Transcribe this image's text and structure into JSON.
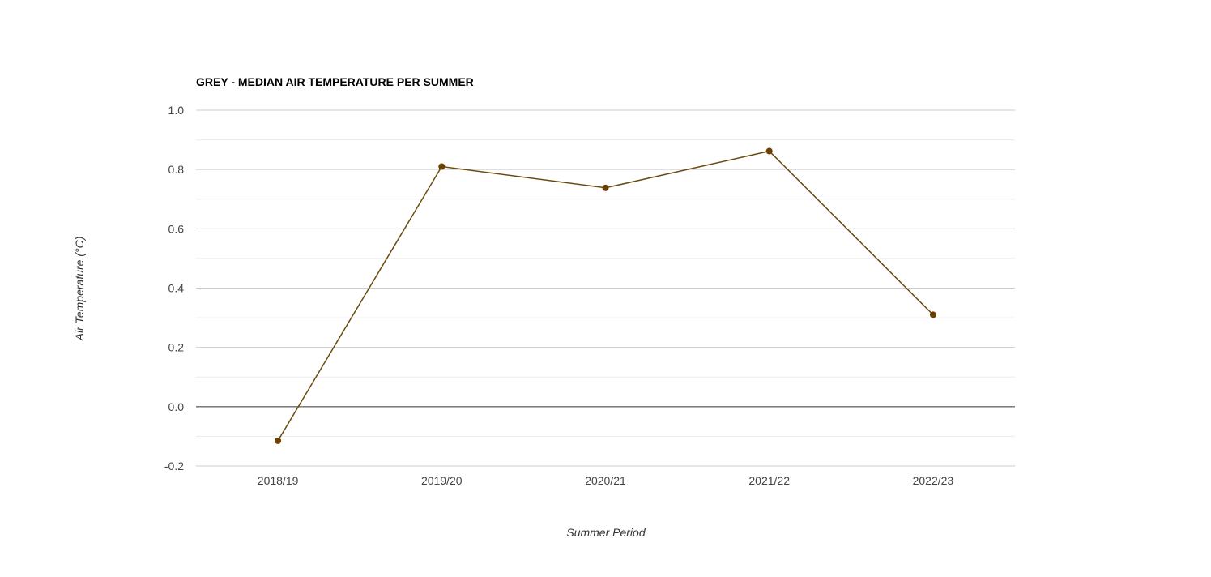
{
  "chart_data": {
    "type": "line",
    "title": "GREY - MEDIAN AIR TEMPERATURE PER SUMMER",
    "xlabel": "Summer Period",
    "ylabel": "Air Temperature (°C)",
    "categories": [
      "2018/19",
      "2019/20",
      "2020/21",
      "2021/22",
      "2022/23"
    ],
    "series": [
      {
        "values": [
          -0.115,
          0.81,
          0.738,
          0.862,
          0.31
        ]
      }
    ],
    "ylim": [
      -0.2,
      1.0
    ],
    "yticks": [
      "1.0",
      "0.8",
      "0.6",
      "0.4",
      "0.2",
      "0.0",
      "-0.2"
    ],
    "ytick_values": [
      1.0,
      0.8,
      0.6,
      0.4,
      0.2,
      0.0,
      -0.2
    ],
    "minor_grid": true,
    "legend": "none",
    "colors": {
      "line": "#6b4a0f",
      "marker": "#6b3f00",
      "grid_major": "#cccccc",
      "grid_minor": "#ebebeb",
      "baseline": "#333333"
    }
  }
}
